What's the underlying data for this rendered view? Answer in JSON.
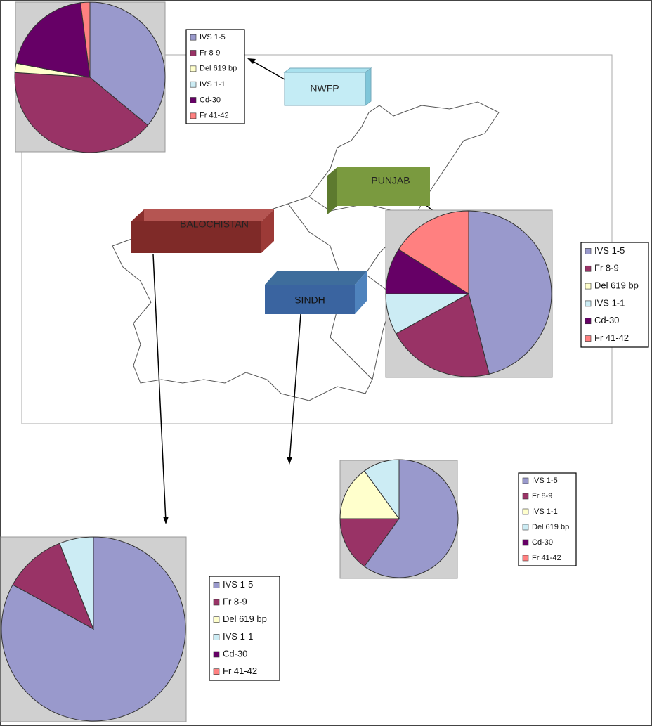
{
  "chart_data": [
    {
      "type": "pie",
      "categories": [
        "IVS 1-5",
        "Fr 8-9",
        "Del 619 bp",
        "IVS 1-1",
        "Cd-30",
        "Fr 41-42"
      ],
      "values": [
        36,
        40,
        2,
        0,
        20,
        2
      ],
      "colors": [
        "#9999cc",
        "#993366",
        "#ffffcc",
        "#ccecf4",
        "#660066",
        "#ff8080"
      ]
    },
    {
      "type": "pie",
      "categories": [
        "IVS 1-5",
        "Fr 8-9",
        "Del 619 bp",
        "IVS 1-1",
        "Cd-30",
        "Fr 41-42"
      ],
      "values": [
        46,
        21,
        0,
        8,
        9,
        16
      ],
      "colors": [
        "#9999cc",
        "#993366",
        "#ffffcc",
        "#ccecf4",
        "#660066",
        "#ff8080"
      ]
    },
    {
      "type": "pie",
      "categories": [
        "IVS 1-5",
        "Fr 8-9",
        "IVS 1-1",
        "Del 619 bp",
        "Cd-30",
        "Fr 41-42"
      ],
      "values": [
        60,
        15,
        15,
        10,
        0,
        0
      ],
      "colors": [
        "#9999cc",
        "#993366",
        "#ffffcc",
        "#ccecf4",
        "#660066",
        "#ff8080"
      ]
    },
    {
      "type": "pie",
      "categories": [
        "IVS 1-5",
        "Fr 8-9",
        "Del 619 bp",
        "IVS 1-1",
        "Cd-30",
        "Fr 41-42"
      ],
      "values": [
        83,
        11,
        0,
        6,
        0,
        0
      ],
      "colors": [
        "#9999cc",
        "#993366",
        "#ffffcc",
        "#ccecf4",
        "#660066",
        "#ff8080"
      ]
    }
  ],
  "map": {
    "regions": [
      "NWFP",
      "PUNJAB",
      "BALOCHISTAN",
      "SINDH"
    ]
  }
}
